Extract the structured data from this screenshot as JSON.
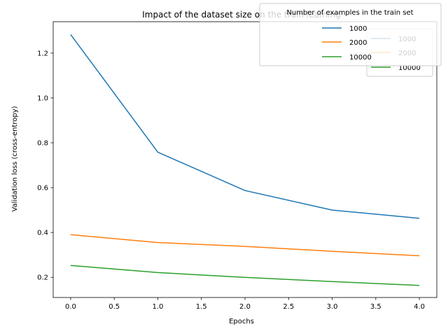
{
  "chart_data": {
    "type": "line",
    "title": "Impact of the dataset size on the train learning",
    "xlabel": "Epochs",
    "ylabel": "Validation loss (cross-entropy)",
    "x": [
      0,
      1,
      2,
      3,
      4
    ],
    "xlim": [
      -0.2,
      4.2
    ],
    "ylim": [
      0.11,
      1.34
    ],
    "xticks": [
      "0.0",
      "0.5",
      "1.0",
      "1.5",
      "2.0",
      "2.5",
      "3.0",
      "3.5",
      "4.0"
    ],
    "yticks": [
      "0.2",
      "0.4",
      "0.6",
      "0.8",
      "1.0",
      "1.2"
    ],
    "grid": false,
    "series": [
      {
        "name": "1000",
        "color": "#1f77b4",
        "values": [
          1.283,
          0.758,
          0.587,
          0.5,
          0.463
        ]
      },
      {
        "name": "2000",
        "color": "#ff7f0e",
        "values": [
          0.39,
          0.355,
          0.338,
          0.316,
          0.296
        ]
      },
      {
        "name": "10000",
        "color": "#2ca02c",
        "values": [
          0.253,
          0.221,
          0.2,
          0.181,
          0.164
        ]
      }
    ],
    "legends": [
      {
        "placement": "upper right (inside axes)",
        "title": "",
        "entries": [
          "1000",
          "2000",
          "10000"
        ]
      },
      {
        "placement": "top-right (overlapping title)",
        "title": "Number of examples in the train set",
        "entries": [
          "1000",
          "2000",
          "10000"
        ]
      }
    ]
  }
}
